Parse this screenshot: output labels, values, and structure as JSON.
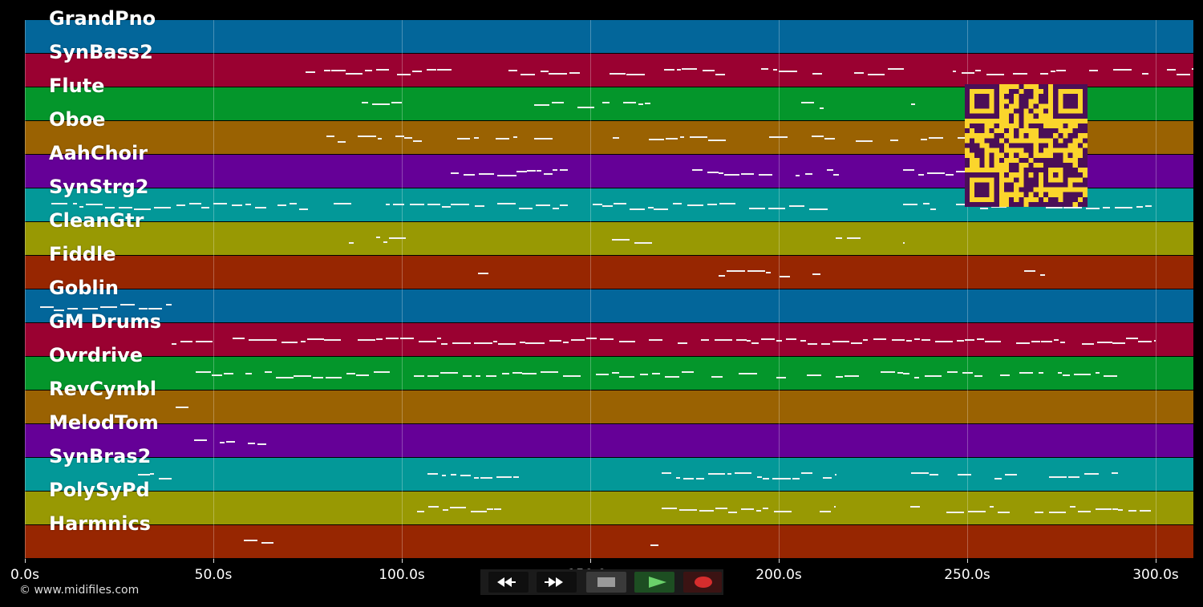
{
  "tracks": [
    {
      "name": "GrandPno",
      "color": "#03669a"
    },
    {
      "name": "SynBass2",
      "color": "#9a0131"
    },
    {
      "name": "Flute",
      "color": "#04962b"
    },
    {
      "name": "Oboe",
      "color": "#9a6202"
    },
    {
      "name": "AahChoir",
      "color": "#650097"
    },
    {
      "name": "SynStrg2",
      "color": "#039898"
    },
    {
      "name": "CleanGtr",
      "color": "#989903"
    },
    {
      "name": "Fiddle",
      "color": "#972601"
    },
    {
      "name": "Goblin",
      "color": "#03669a"
    },
    {
      "name": "GM Drums",
      "color": "#9a0131"
    },
    {
      "name": "Ovrdrive",
      "color": "#04962b"
    },
    {
      "name": "RevCymbl",
      "color": "#9a6202"
    },
    {
      "name": "MelodTom",
      "color": "#650097"
    },
    {
      "name": "SynBras2",
      "color": "#039898"
    },
    {
      "name": "PolySyPd",
      "color": "#989903"
    },
    {
      "name": "Harmnics",
      "color": "#972601"
    }
  ],
  "axis": {
    "labels": [
      "0.0s",
      "50.0s",
      "100.0s",
      "150.0s",
      "200.0s",
      "250.0s",
      "300.0s"
    ],
    "range_seconds": [
      0,
      310
    ]
  },
  "copyright": "© www.midifiles.com",
  "transport": {
    "rewind": "rewind-icon",
    "fast_forward": "fast-forward-icon",
    "stop": "stop-icon",
    "play": "play-icon",
    "record": "record-icon"
  },
  "qr_code": "qr-code",
  "colors": {
    "background": "#000000",
    "note": "#f2f2f2",
    "qr": "#fbd52c",
    "qr_dark": "#4b0f57"
  }
}
